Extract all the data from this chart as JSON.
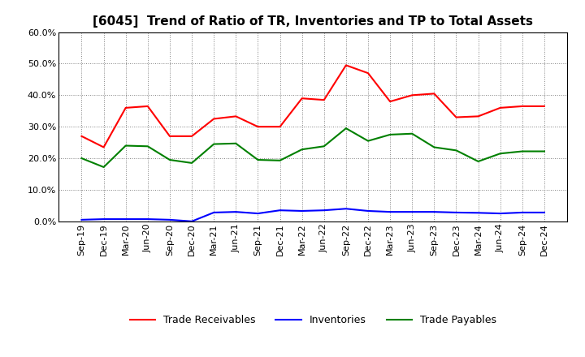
{
  "title": "[6045]  Trend of Ratio of TR, Inventories and TP to Total Assets",
  "x_labels": [
    "Sep-19",
    "Dec-19",
    "Mar-20",
    "Jun-20",
    "Sep-20",
    "Dec-20",
    "Mar-21",
    "Jun-21",
    "Sep-21",
    "Dec-21",
    "Mar-22",
    "Jun-22",
    "Sep-22",
    "Dec-22",
    "Mar-23",
    "Jun-23",
    "Sep-23",
    "Dec-23",
    "Mar-24",
    "Jun-24",
    "Sep-24",
    "Dec-24"
  ],
  "trade_receivables": [
    0.27,
    0.235,
    0.36,
    0.365,
    0.27,
    0.27,
    0.325,
    0.333,
    0.3,
    0.3,
    0.39,
    0.385,
    0.495,
    0.47,
    0.38,
    0.4,
    0.405,
    0.33,
    0.333,
    0.36,
    0.365,
    0.365
  ],
  "inventories": [
    0.005,
    0.007,
    0.007,
    0.007,
    0.005,
    0.0,
    0.028,
    0.03,
    0.025,
    0.035,
    0.033,
    0.035,
    0.04,
    0.033,
    0.03,
    0.03,
    0.03,
    0.028,
    0.027,
    0.025,
    0.028,
    0.028
  ],
  "trade_payables": [
    0.2,
    0.172,
    0.24,
    0.238,
    0.195,
    0.185,
    0.245,
    0.247,
    0.195,
    0.193,
    0.228,
    0.238,
    0.295,
    0.255,
    0.275,
    0.278,
    0.235,
    0.225,
    0.19,
    0.215,
    0.222,
    0.222
  ],
  "color_tr": "#FF0000",
  "color_inv": "#0000FF",
  "color_tp": "#008000",
  "ylim": [
    0.0,
    0.6
  ],
  "yticks": [
    0.0,
    0.1,
    0.2,
    0.3,
    0.4,
    0.5,
    0.6
  ],
  "background_color": "#FFFFFF",
  "plot_bg_color": "#FFFFFF",
  "title_fontsize": 11,
  "tick_fontsize": 8,
  "legend_fontsize": 9
}
